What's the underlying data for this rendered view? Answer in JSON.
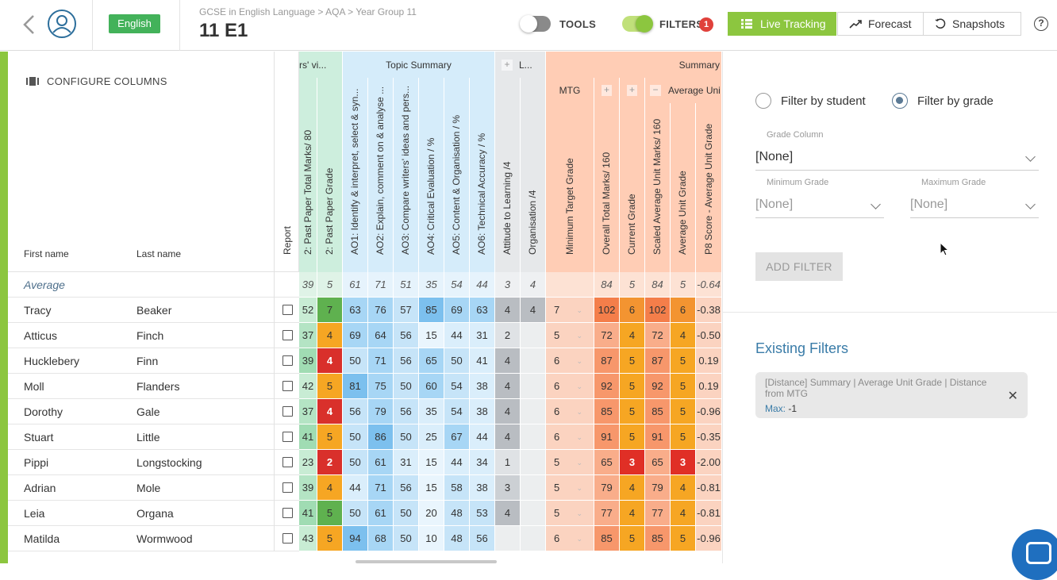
{
  "header": {
    "language": "English",
    "breadcrumb": "GCSE in English Language > AQA > Year Group 11",
    "title": "11 E1",
    "tools_label": "TOOLS",
    "filters_label": "FILTERS",
    "filters_count": "1",
    "live_tracking": "Live Tracking",
    "forecast": "Forecast",
    "snapshots": "Snapshots",
    "help": "?"
  },
  "table": {
    "configure_columns": "CONFIGURE COLUMNS",
    "first_name_header": "First name",
    "last_name_header": "Last name",
    "report_header": "Report",
    "average_label": "Average",
    "students": [
      {
        "first": "Tracy",
        "last": "Beaker"
      },
      {
        "first": "Atticus",
        "last": "Finch"
      },
      {
        "first": "Hucklebery",
        "last": "Finn"
      },
      {
        "first": "Moll",
        "last": "Flanders"
      },
      {
        "first": "Dorothy",
        "last": "Gale"
      },
      {
        "first": "Stuart",
        "last": "Little"
      },
      {
        "first": "Pippi",
        "last": "Longstocking"
      },
      {
        "first": "Adrian",
        "last": "Mole"
      },
      {
        "first": "Leia",
        "last": "Organa"
      },
      {
        "first": "Matilda",
        "last": "Wormwood"
      }
    ]
  },
  "grid": {
    "groups": [
      {
        "label": "rs' vi..."
      },
      {
        "label": "Topic Summary"
      },
      {
        "label": "L...",
        "button": "+"
      },
      {
        "label": "Summary"
      }
    ],
    "subgroups": {
      "mtg": "MTG",
      "plus1": "+",
      "plus2": "+",
      "minus": "−",
      "avg_unit": "Average Uni"
    },
    "columns": [
      "2: Past Paper Total Marks/ 80",
      "2: Past Paper Grade",
      "AO1: Identify & interpret, select & syn...",
      "AO2: Explain, comment on & analyse ...",
      "AO3: Compare writers' ideas and pers...",
      "AO4: Critical Evaluation / %",
      "AO5: Content & Organisation / %",
      "AO6: Technical Accuracy / %",
      "Attitude to Learning /4",
      "Organisation /4",
      "Minimum Target Grade",
      "Overall Total Marks/ 160",
      "Current Grade",
      "Scaled Average Unit Marks/ 160",
      "Average Unit Grade",
      "P8 Score - Average Unit Grade"
    ],
    "averages": [
      "39",
      "5",
      "61",
      "71",
      "51",
      "35",
      "54",
      "44",
      "3",
      "4",
      "",
      "84",
      "5",
      "84",
      "5",
      "-0.64"
    ],
    "rows": [
      [
        "52",
        "7",
        "63",
        "76",
        "57",
        "85",
        "69",
        "63",
        "4",
        "4",
        "7",
        "102",
        "6",
        "102",
        "6",
        "-0.38"
      ],
      [
        "37",
        "4",
        "69",
        "64",
        "56",
        "15",
        "44",
        "31",
        "2",
        "",
        "5",
        "72",
        "4",
        "72",
        "4",
        "-0.50"
      ],
      [
        "39",
        "4",
        "50",
        "71",
        "56",
        "65",
        "50",
        "41",
        "4",
        "",
        "6",
        "87",
        "5",
        "87",
        "5",
        "0.19"
      ],
      [
        "42",
        "5",
        "81",
        "75",
        "50",
        "60",
        "54",
        "38",
        "4",
        "",
        "6",
        "92",
        "5",
        "92",
        "5",
        "0.19"
      ],
      [
        "37",
        "4",
        "56",
        "79",
        "56",
        "35",
        "54",
        "38",
        "4",
        "",
        "6",
        "85",
        "5",
        "85",
        "5",
        "-0.96"
      ],
      [
        "41",
        "5",
        "50",
        "86",
        "50",
        "25",
        "67",
        "44",
        "4",
        "",
        "6",
        "91",
        "5",
        "91",
        "5",
        "-0.35"
      ],
      [
        "23",
        "2",
        "50",
        "61",
        "31",
        "15",
        "44",
        "34",
        "1",
        "",
        "5",
        "65",
        "3",
        "65",
        "3",
        "-2.00"
      ],
      [
        "39",
        "4",
        "44",
        "71",
        "56",
        "15",
        "58",
        "38",
        "3",
        "",
        "5",
        "79",
        "4",
        "79",
        "4",
        "-0.81"
      ],
      [
        "41",
        "5",
        "50",
        "61",
        "50",
        "20",
        "48",
        "53",
        "4",
        "",
        "5",
        "77",
        "4",
        "77",
        "4",
        "-0.81"
      ],
      [
        "43",
        "5",
        "94",
        "68",
        "50",
        "10",
        "48",
        "56",
        "",
        "",
        "6",
        "85",
        "5",
        "85",
        "5",
        "-0.96"
      ]
    ]
  },
  "filter_panel": {
    "by_student": "Filter by student",
    "by_grade": "Filter by grade",
    "selected": "grade",
    "grade_column_label": "Grade Column",
    "grade_column_value": "[None]",
    "min_grade_label": "Minimum Grade",
    "min_grade_value": "[None]",
    "max_grade_label": "Maximum Grade",
    "max_grade_value": "[None]",
    "add_filter": "ADD FILTER",
    "existing_title": "Existing Filters",
    "existing": [
      {
        "description": "[Distance] Summary | Average Unit Grade | Distance from MTG",
        "max_key": "Max:",
        "max_value": "-1"
      }
    ]
  },
  "colors": {
    "accent_green": "#8cc63f",
    "badge_red": "#e0413b",
    "link_blue": "#3a7ca8"
  }
}
